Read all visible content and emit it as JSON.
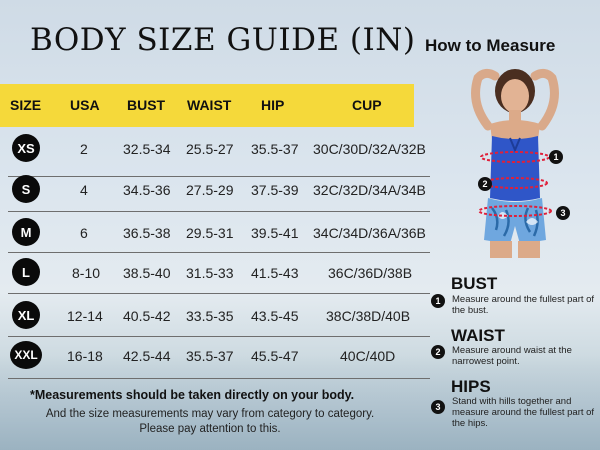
{
  "title": "BODY SIZE GUIDE (IN)",
  "how_to_measure": "How to Measure",
  "table": {
    "headers": [
      "SIZE",
      "USA",
      "BUST",
      "WAIST",
      "HIP",
      "CUP"
    ],
    "rows": [
      [
        "XS",
        "2",
        "32.5-34",
        "25.5-27",
        "35.5-37",
        "30C/30D/32A/32B"
      ],
      [
        "S",
        "4",
        "34.5-36",
        "27.5-29",
        "37.5-39",
        "32C/32D/34A/34B"
      ],
      [
        "M",
        "6",
        "36.5-38",
        "29.5-31",
        "39.5-41",
        "34C/34D/36A/36B"
      ],
      [
        "L",
        "8-10",
        "38.5-40",
        "31.5-33",
        "41.5-43",
        "36C/36D/38B"
      ],
      [
        "XL",
        "12-14",
        "40.5-42",
        "33.5-35",
        "43.5-45",
        "38C/38D/40B"
      ],
      [
        "XXL",
        "16-18",
        "42.5-44",
        "35.5-37",
        "45.5-47",
        "40C/40D"
      ]
    ]
  },
  "notes": {
    "primary": "*Measurements should be taken directly on your body.",
    "secondary": "And the size measurements may vary from category to category. Please pay attention to this."
  },
  "figure_markers": [
    "1",
    "2",
    "3"
  ],
  "measures": [
    {
      "number": "1",
      "title": "BUST",
      "text": "Measure around the fullest part of the bust."
    },
    {
      "number": "2",
      "title": "WAIST",
      "text": "Measure around waist at the narrowest point."
    },
    {
      "number": "3",
      "title": "HIPS",
      "text": "Stand with hills together and measure around the fullest part of the hips."
    }
  ],
  "colors": {
    "header_band": "#f5d93a",
    "swimsuit": "#2f56c8",
    "measure_line": "#e0203a",
    "badge": "#0a0a0a"
  },
  "icons": [
    "model-figure",
    "number-badge-icon",
    "measure-line-icon"
  ]
}
